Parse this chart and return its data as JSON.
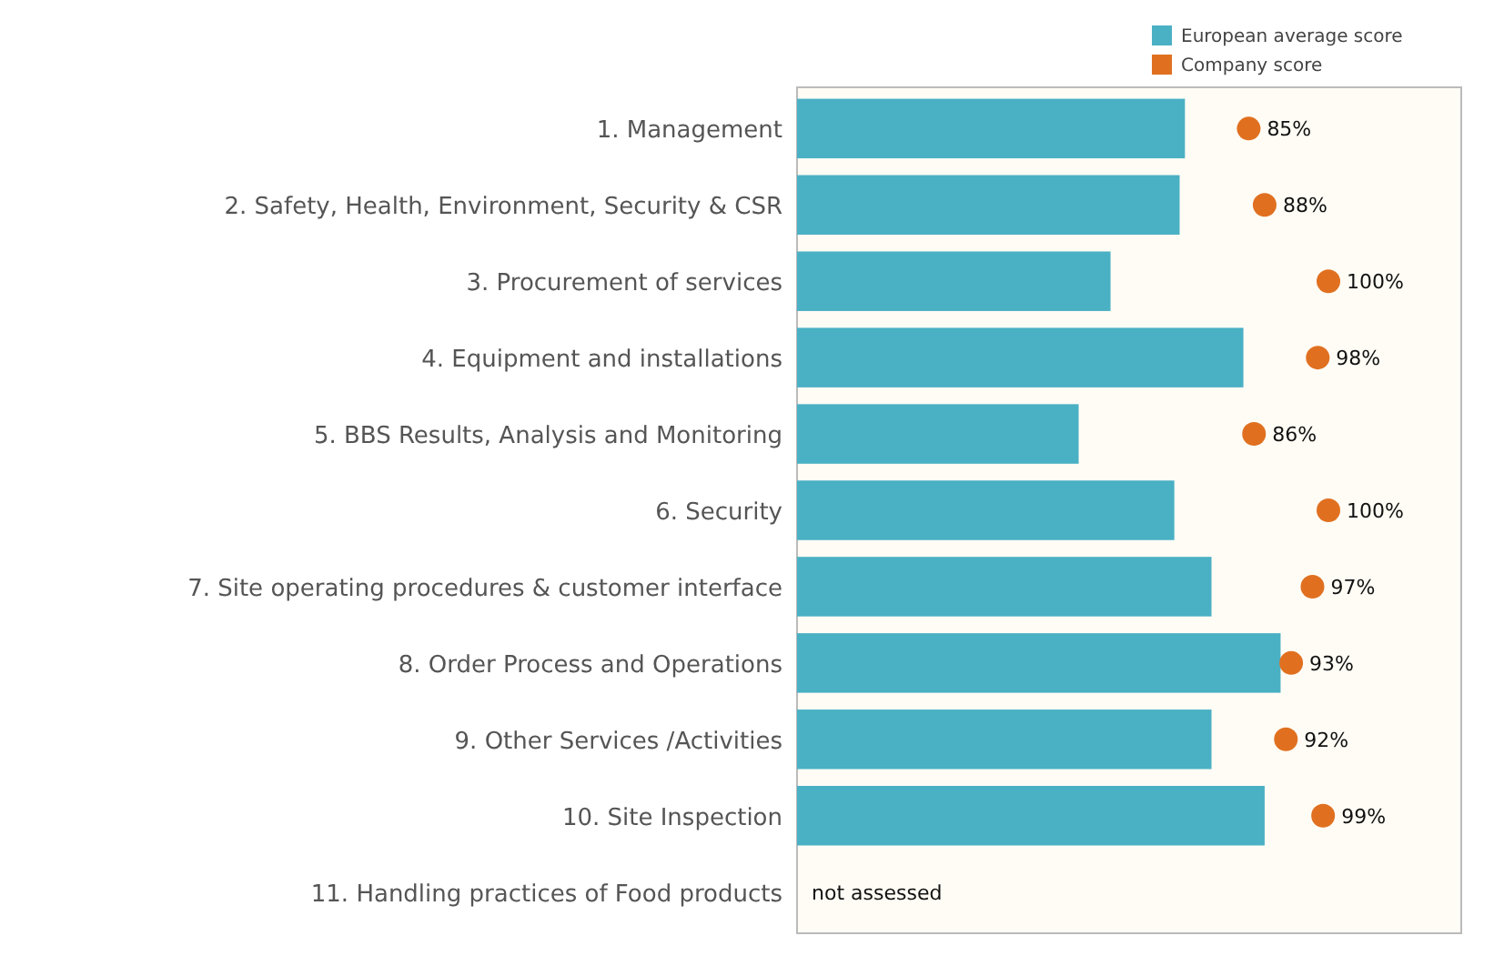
{
  "chart_data": {
    "type": "bar",
    "orientation": "horizontal",
    "legend": "top right",
    "xlim": [
      0,
      125
    ],
    "categories": [
      "1. Management",
      "2. Safety, Health, Environment, Security & CSR",
      "3. Procurement of services",
      "4. Equipment and installations",
      "5. BBS Results, Analysis and Monitoring",
      "6. Security",
      "7. Site operating procedures & customer interface",
      "8. Order Process and Operations",
      "9. Other Services /Activities",
      "10. Site Inspection",
      "11. Handling practices of Food products"
    ],
    "series": [
      {
        "name": "European average score",
        "color": "#4ab0c4",
        "values": [
          73,
          72,
          59,
          84,
          53,
          71,
          78,
          91,
          78,
          88,
          null
        ]
      },
      {
        "name": "Company score",
        "type": "scatter",
        "marker": "circle",
        "color": "#e07020",
        "values": [
          85,
          88,
          100,
          98,
          86,
          100,
          97,
          93,
          92,
          99,
          null
        ],
        "value_labels": [
          "85%",
          "88%",
          "100%",
          "98%",
          "86%",
          "100%",
          "97%",
          "93%",
          "92%",
          "99%",
          "not assessed"
        ]
      }
    ]
  }
}
